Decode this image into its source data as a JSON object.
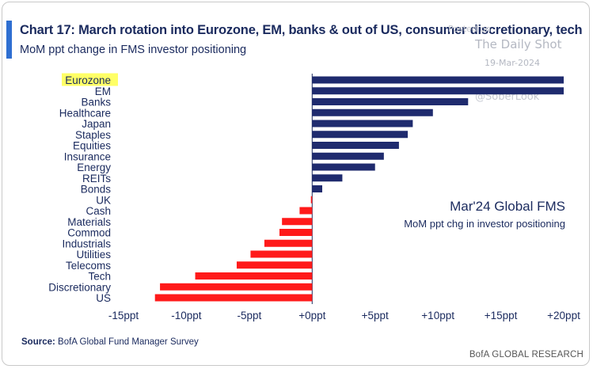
{
  "chart_data": {
    "type": "bar",
    "orientation": "horizontal",
    "title": "Chart 17: March rotation into Eurozone, EM, banks & out of US, consumer discretionary, tech",
    "subtitle": "MoM ppt change in FMS investor positioning",
    "annotation_title": "Mar'24 Global FMS",
    "annotation_subtitle": "MoM ppt chg in investor positioning",
    "highlighted_category": "Eurozone",
    "highlight_color": "#ffff66",
    "positive_color": "#1f2b6e",
    "negative_color": "#ff1a1a",
    "xlim": [
      -15,
      20
    ],
    "ticks": [
      -15,
      -10,
      -5,
      0,
      5,
      10,
      15,
      20
    ],
    "tick_labels": [
      "-15ppt",
      "-10ppt",
      "-5ppt",
      "+0ppt",
      "+5ppt",
      "+10ppt",
      "+15ppt",
      "+20ppt"
    ],
    "categories": [
      "Eurozone",
      "EM",
      "Banks",
      "Healthcare",
      "Japan",
      "Staples",
      "Equities",
      "Insurance",
      "Energy",
      "REITs",
      "Bonds",
      "UK",
      "Cash",
      "Materials",
      "Commod",
      "Industrials",
      "Utilities",
      "Telecoms",
      "Tech",
      "Discretionary",
      "US"
    ],
    "values": [
      20,
      20,
      12.4,
      9.6,
      8.0,
      7.6,
      6.9,
      5.7,
      5.0,
      2.4,
      0.8,
      -0.1,
      -1.0,
      -2.4,
      -2.6,
      -3.8,
      -4.9,
      -6.0,
      -9.3,
      -12.1,
      -12.5
    ]
  },
  "source": {
    "label": "Source:",
    "text": "BofA Global Fund Manager Survey"
  },
  "footer_brand": "BofA GLOBAL RESEARCH",
  "watermark": {
    "posted_on": "Posted on",
    "brand": "The Daily Shot",
    "date": "19-Mar-2024",
    "handle": "@SoberLook"
  }
}
